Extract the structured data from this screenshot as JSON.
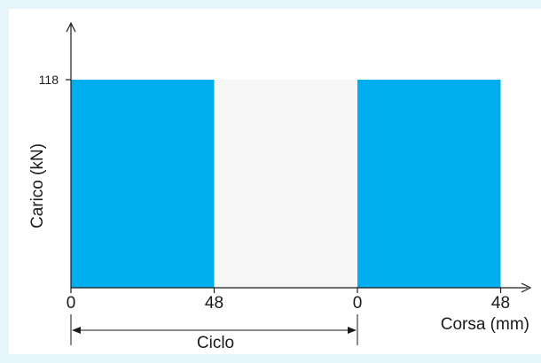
{
  "chart_data": {
    "type": "bar",
    "ylabel": "Carico (kN)",
    "xlabel": "Corsa (mm)",
    "cycle_label": "Ciclo",
    "y_ticks": [
      "118"
    ],
    "x_ticks": [
      "0",
      "48",
      "0",
      "48"
    ],
    "ylim": [
      0,
      118
    ],
    "segments": [
      {
        "from": "0",
        "to": "48",
        "value": 118,
        "filled": true
      },
      {
        "from": "48",
        "to": "0",
        "value": 118,
        "filled": false
      },
      {
        "from": "0",
        "to": "48",
        "value": 118,
        "filled": true
      }
    ],
    "colors": {
      "fill": "#00aeef",
      "empty": "#f7f7f7",
      "axis": "#1a1a1a",
      "background": "#e6f4fc"
    }
  }
}
